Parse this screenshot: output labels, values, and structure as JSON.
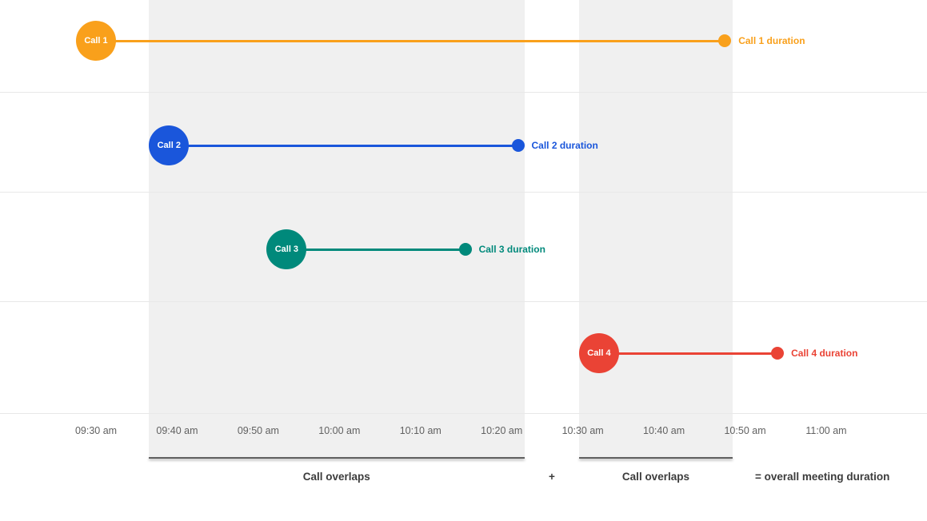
{
  "chart_data": {
    "type": "timeline",
    "title": "",
    "x_axis": {
      "ticks": [
        {
          "label": "09:30 am",
          "min": 0
        },
        {
          "label": "09:40 am",
          "min": 10
        },
        {
          "label": "09:50 am",
          "min": 20
        },
        {
          "label": "10:00 am",
          "min": 30
        },
        {
          "label": "10:10 am",
          "min": 40
        },
        {
          "label": "10:20 am",
          "min": 50
        },
        {
          "label": "10:30 am",
          "min": 60
        },
        {
          "label": "10:40 am",
          "min": 70
        },
        {
          "label": "10:50 am",
          "min": 80
        },
        {
          "label": "11:00 am",
          "min": 90
        }
      ]
    },
    "calls": [
      {
        "name": "Call 1",
        "duration_label": "Call 1 duration",
        "start_time": "09:30 am",
        "end_time": "10:47 am",
        "start_min": 0,
        "end_min": 77.5,
        "color": "#f9a01b"
      },
      {
        "name": "Call 2",
        "duration_label": "Call 2 duration",
        "start_time": "09:39 am",
        "end_time": "10:22 am",
        "start_min": 9,
        "end_min": 52,
        "color": "#1a56db"
      },
      {
        "name": "Call 3",
        "duration_label": "Call 3 duration",
        "start_time": "09:53 am",
        "end_time": "10:15 am",
        "start_min": 23.5,
        "end_min": 45.5,
        "color": "#00897b"
      },
      {
        "name": "Call 4",
        "duration_label": "Call 4 duration",
        "start_time": "10:32 am",
        "end_time": "10:54 am",
        "start_min": 62,
        "end_min": 84,
        "color": "#ea4335"
      }
    ],
    "overlap_bands": [
      {
        "label": "Call overlaps",
        "start_min": 6.5,
        "end_min": 52.8
      },
      {
        "label": "Call overlaps",
        "start_min": 59.5,
        "end_min": 78.5
      }
    ],
    "annotations": {
      "plus": "+",
      "equals": "= overall meeting duration"
    }
  },
  "styles": {
    "band_color": "#f0f0f0",
    "gridline_color": "#e8e8e8",
    "underline_color": "#5f5f5f",
    "tick_color": "#616161",
    "footer_color": "#3c3c3c"
  }
}
